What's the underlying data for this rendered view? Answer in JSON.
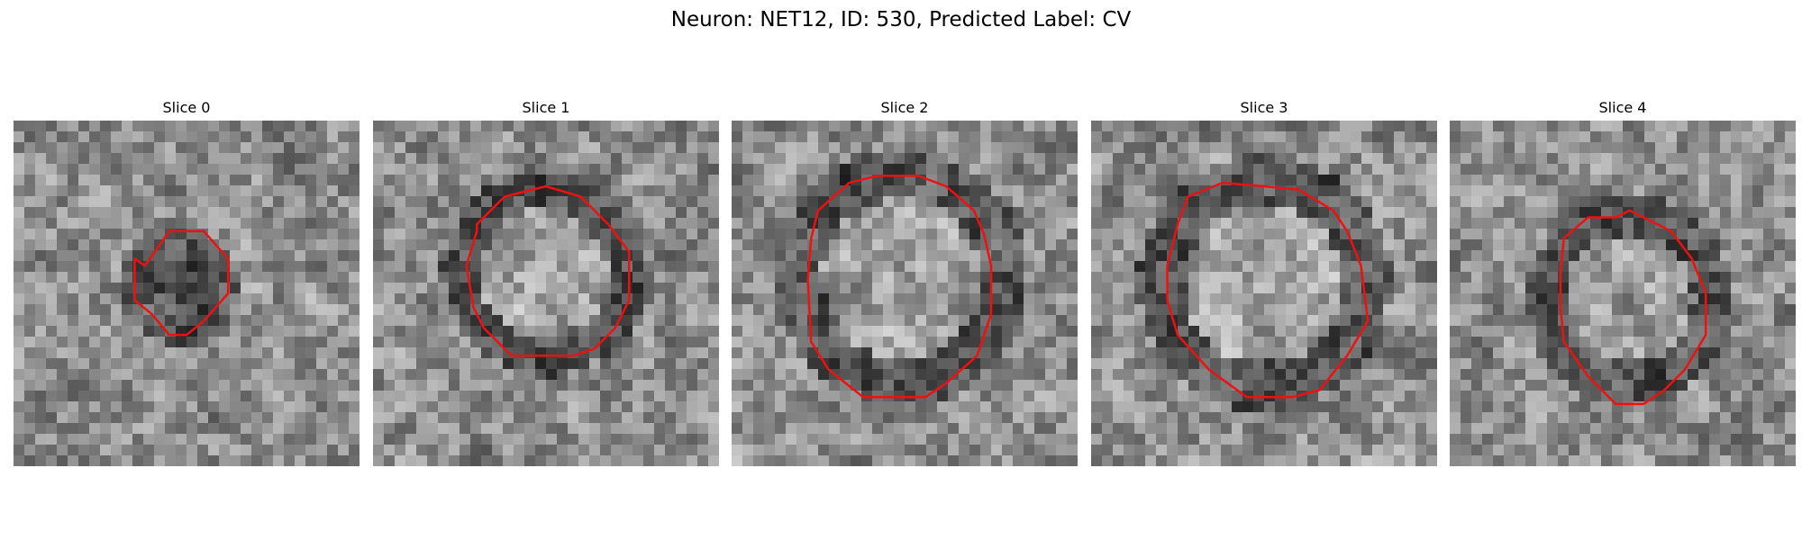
{
  "figure": {
    "title": "Neuron: NET12, ID: 530, Predicted Label: CV"
  },
  "contour_color": "#ee1111",
  "panels": [
    {
      "label": "Slice 0",
      "contour": [
        [
          0.38,
          0.42
        ],
        [
          0.45,
          0.32
        ],
        [
          0.55,
          0.32
        ],
        [
          0.62,
          0.4
        ],
        [
          0.62,
          0.5
        ],
        [
          0.55,
          0.58
        ],
        [
          0.5,
          0.62
        ],
        [
          0.45,
          0.62
        ],
        [
          0.4,
          0.56
        ],
        [
          0.35,
          0.52
        ],
        [
          0.35,
          0.4
        ]
      ],
      "seed": 11
    },
    {
      "label": "Slice 1",
      "contour": [
        [
          0.3,
          0.3
        ],
        [
          0.38,
          0.22
        ],
        [
          0.5,
          0.19
        ],
        [
          0.6,
          0.22
        ],
        [
          0.68,
          0.3
        ],
        [
          0.74,
          0.38
        ],
        [
          0.74,
          0.52
        ],
        [
          0.7,
          0.6
        ],
        [
          0.64,
          0.66
        ],
        [
          0.58,
          0.68
        ],
        [
          0.4,
          0.68
        ],
        [
          0.32,
          0.6
        ],
        [
          0.29,
          0.54
        ],
        [
          0.27,
          0.42
        ],
        [
          0.3,
          0.32
        ]
      ],
      "seed": 23
    },
    {
      "label": "Slice 2",
      "contour": [
        [
          0.25,
          0.26
        ],
        [
          0.34,
          0.18
        ],
        [
          0.42,
          0.16
        ],
        [
          0.54,
          0.16
        ],
        [
          0.62,
          0.19
        ],
        [
          0.7,
          0.26
        ],
        [
          0.73,
          0.33
        ],
        [
          0.75,
          0.42
        ],
        [
          0.75,
          0.56
        ],
        [
          0.71,
          0.68
        ],
        [
          0.62,
          0.76
        ],
        [
          0.56,
          0.8
        ],
        [
          0.38,
          0.8
        ],
        [
          0.28,
          0.72
        ],
        [
          0.23,
          0.64
        ],
        [
          0.22,
          0.46
        ],
        [
          0.23,
          0.34
        ]
      ],
      "seed": 37
    },
    {
      "label": "Slice 3",
      "contour": [
        [
          0.28,
          0.22
        ],
        [
          0.38,
          0.18
        ],
        [
          0.5,
          0.19
        ],
        [
          0.6,
          0.2
        ],
        [
          0.7,
          0.26
        ],
        [
          0.74,
          0.32
        ],
        [
          0.78,
          0.42
        ],
        [
          0.8,
          0.58
        ],
        [
          0.74,
          0.68
        ],
        [
          0.66,
          0.78
        ],
        [
          0.58,
          0.8
        ],
        [
          0.45,
          0.8
        ],
        [
          0.34,
          0.72
        ],
        [
          0.25,
          0.62
        ],
        [
          0.22,
          0.52
        ],
        [
          0.22,
          0.42
        ],
        [
          0.25,
          0.3
        ]
      ],
      "seed": 49
    },
    {
      "label": "Slice 4",
      "contour": [
        [
          0.33,
          0.34
        ],
        [
          0.4,
          0.28
        ],
        [
          0.48,
          0.28
        ],
        [
          0.52,
          0.26
        ],
        [
          0.56,
          0.28
        ],
        [
          0.64,
          0.32
        ],
        [
          0.7,
          0.4
        ],
        [
          0.74,
          0.5
        ],
        [
          0.74,
          0.62
        ],
        [
          0.68,
          0.72
        ],
        [
          0.62,
          0.78
        ],
        [
          0.56,
          0.82
        ],
        [
          0.48,
          0.82
        ],
        [
          0.4,
          0.74
        ],
        [
          0.33,
          0.64
        ],
        [
          0.32,
          0.54
        ],
        [
          0.32,
          0.44
        ]
      ],
      "seed": 61
    }
  ]
}
